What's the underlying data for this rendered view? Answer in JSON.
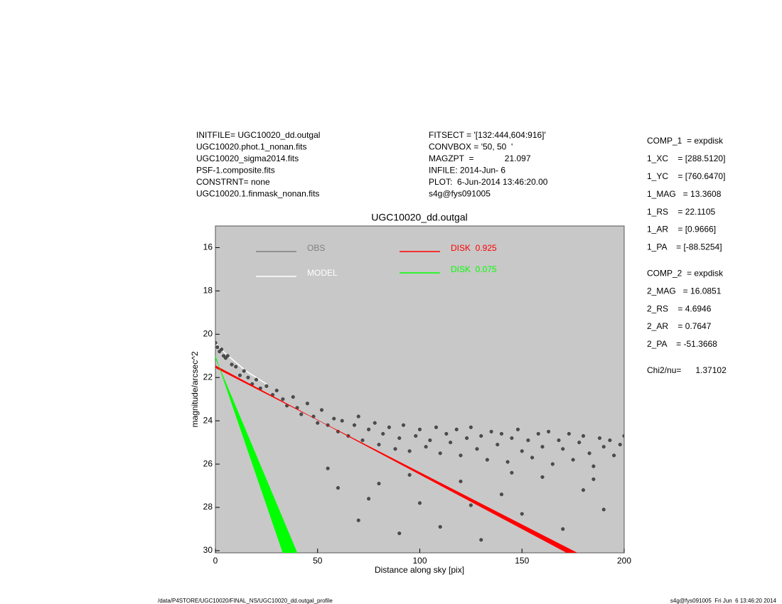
{
  "header": {
    "left": [
      "INITFILE= UGC10020_dd.outgal",
      "UGC10020.phot.1_nonan.fits",
      "UGC10020_sigma2014.fits",
      "PSF-1.composite.fits",
      "CONSTRNT= none",
      "UGC10020.1.finmask_nonan.fits"
    ],
    "middle": [
      "FITSECT = '[132:444,604:916]'",
      "CONVBOX = '50, 50  '",
      "MAGZPT  =             21.097",
      "INFILE: 2014-Jun- 6",
      "PLOT:  6-Jun-2014 13:46:20.00",
      "s4g@fys091005"
    ]
  },
  "parameters": [
    [
      "COMP_1  = expdisk",
      "1_XC    = [288.5120]",
      "1_YC    = [760.6470]",
      "1_MAG   = 13.3608",
      "1_RS    = 22.1105",
      "1_AR    = [0.9666]",
      "1_PA    = [-88.5254]"
    ],
    [
      "COMP_2  = expdisk",
      "2_MAG   = 16.0851",
      "2_RS    = 4.6946",
      "2_AR    = 0.7647",
      "2_PA    = -51.3668"
    ],
    [
      "Chi2/nu=      1.37102"
    ]
  ],
  "footer": {
    "left": "/data/P4STORE/UGC10020/FINAL_NS/UGC10020_dd.outgal_profile",
    "right": "s4g@fys091005  Fri Jun  6 13:46:20 2014"
  },
  "chart_data": {
    "type": "scatter",
    "title": "UGC10020_dd.outgal",
    "x_label": "Distance along sky [pix]",
    "y_label": "magnitude/arcsec^2",
    "xlim": [
      0,
      200
    ],
    "xticks": [
      0,
      50,
      100,
      150,
      200
    ],
    "ylim": [
      15,
      30.1
    ],
    "y_inverted": true,
    "yticks": [
      16,
      18,
      20,
      22,
      24,
      26,
      28,
      30
    ],
    "background": "#c8c8c8",
    "series": [
      {
        "name": "OBS",
        "kind": "points",
        "color": "#808080",
        "marker_color": "#4d4d4d",
        "x": [
          0,
          1,
          2,
          3,
          4,
          5,
          6,
          8,
          10,
          12,
          14,
          16,
          18,
          20,
          22,
          25,
          28,
          30,
          33,
          35,
          38,
          40,
          42,
          45,
          48,
          50,
          52,
          55,
          58,
          60,
          62,
          65,
          68,
          70,
          72,
          75,
          78,
          80,
          82,
          85,
          88,
          90,
          92,
          95,
          98,
          100,
          103,
          105,
          108,
          110,
          113,
          115,
          118,
          120,
          123,
          125,
          128,
          130,
          133,
          135,
          138,
          140,
          143,
          145,
          148,
          150,
          153,
          155,
          158,
          160,
          163,
          165,
          168,
          170,
          173,
          175,
          178,
          180,
          183,
          185,
          188,
          190,
          193,
          195,
          198,
          200,
          60,
          70,
          80,
          90,
          100,
          110,
          120,
          130,
          140,
          150,
          160,
          170,
          180,
          190,
          55,
          75,
          95,
          125,
          145,
          185
        ],
        "values": [
          20.4,
          20.6,
          20.8,
          20.7,
          21.0,
          21.1,
          21.0,
          21.4,
          21.5,
          21.9,
          21.7,
          22.0,
          22.3,
          22.1,
          22.5,
          22.4,
          22.8,
          22.6,
          23.0,
          23.3,
          22.9,
          23.4,
          23.7,
          23.2,
          23.8,
          24.1,
          23.5,
          24.2,
          23.9,
          24.5,
          24.0,
          24.7,
          24.2,
          23.8,
          24.9,
          24.4,
          24.1,
          25.1,
          24.6,
          24.3,
          25.3,
          24.8,
          24.2,
          25.4,
          24.7,
          24.4,
          25.2,
          24.9,
          24.3,
          25.5,
          24.6,
          25.0,
          24.4,
          25.6,
          24.8,
          24.3,
          25.3,
          24.7,
          25.8,
          24.5,
          25.1,
          24.6,
          25.9,
          24.8,
          24.4,
          25.4,
          24.9,
          25.7,
          24.6,
          25.2,
          24.5,
          26.0,
          24.9,
          25.3,
          24.6,
          25.8,
          25.0,
          24.7,
          25.5,
          26.1,
          24.8,
          25.2,
          24.9,
          25.6,
          25.1,
          24.7,
          27.1,
          28.6,
          26.9,
          29.2,
          27.8,
          28.9,
          26.8,
          29.5,
          27.4,
          28.3,
          26.6,
          29.0,
          27.2,
          28.1,
          26.2,
          27.6,
          26.5,
          27.9,
          26.4,
          26.7
        ]
      },
      {
        "name": "MODEL",
        "kind": "line",
        "color": "#ffffff",
        "x": [
          0,
          5,
          10,
          15,
          20,
          25
        ],
        "values": [
          20.4,
          20.9,
          21.3,
          21.7,
          22.0,
          22.3
        ]
      },
      {
        "name": "DISK  0.925",
        "kind": "band",
        "color": "#ff0000",
        "x": [
          0,
          172
        ],
        "values": [
          21.45,
          30.1
        ],
        "x2": [
          0,
          177
        ],
        "values2": [
          21.55,
          30.1
        ]
      },
      {
        "name": "DISK  0.075",
        "kind": "band",
        "color": "#00ff00",
        "x": [
          0,
          33
        ],
        "values": [
          21.0,
          30.1
        ],
        "x2": [
          0,
          40
        ],
        "values2": [
          21.1,
          30.1
        ]
      }
    ]
  }
}
